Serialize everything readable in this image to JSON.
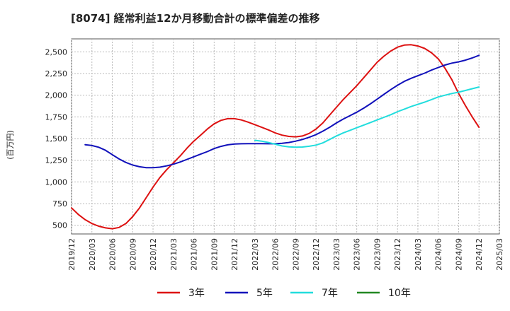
{
  "chart_data": {
    "type": "line",
    "title": "[8074]  経常利益12か月移動合計の標準偏差の推移",
    "ylabel": "(百万円)",
    "xlabel": "",
    "ylim": [
      400,
      2650
    ],
    "yticks": [
      500,
      750,
      1000,
      1250,
      1500,
      1750,
      2000,
      2250,
      2500
    ],
    "ytick_labels": [
      "500",
      "750",
      "1,000",
      "1,250",
      "1,500",
      "1,750",
      "2,000",
      "2,250",
      "2,500"
    ],
    "xlim": [
      "2019-12",
      "2025-03"
    ],
    "xtick_labels": [
      "2019/12",
      "2020/03",
      "2020/06",
      "2020/09",
      "2020/12",
      "2021/03",
      "2021/06",
      "2021/09",
      "2021/12",
      "2022/03",
      "2022/06",
      "2022/09",
      "2022/12",
      "2023/03",
      "2023/06",
      "2023/09",
      "2023/12",
      "2024/03",
      "2024/06",
      "2024/09",
      "2024/12",
      "2025/03"
    ],
    "grid": true,
    "legend_position": "bottom",
    "series": [
      {
        "name": "3年",
        "color": "#dd1111",
        "points": [
          [
            "2019-12",
            700
          ],
          [
            "2020-01",
            625
          ],
          [
            "2020-02",
            565
          ],
          [
            "2020-03",
            520
          ],
          [
            "2020-04",
            490
          ],
          [
            "2020-05",
            470
          ],
          [
            "2020-06",
            460
          ],
          [
            "2020-07",
            475
          ],
          [
            "2020-08",
            520
          ],
          [
            "2020-09",
            600
          ],
          [
            "2020-10",
            700
          ],
          [
            "2020-11",
            820
          ],
          [
            "2020-12",
            940
          ],
          [
            "2021-01",
            1050
          ],
          [
            "2021-02",
            1140
          ],
          [
            "2021-03",
            1220
          ],
          [
            "2021-04",
            1300
          ],
          [
            "2021-05",
            1390
          ],
          [
            "2021-06",
            1470
          ],
          [
            "2021-07",
            1540
          ],
          [
            "2021-08",
            1610
          ],
          [
            "2021-09",
            1670
          ],
          [
            "2021-10",
            1710
          ],
          [
            "2021-11",
            1730
          ],
          [
            "2021-12",
            1730
          ],
          [
            "2022-01",
            1715
          ],
          [
            "2022-02",
            1690
          ],
          [
            "2022-03",
            1660
          ],
          [
            "2022-04",
            1630
          ],
          [
            "2022-05",
            1600
          ],
          [
            "2022-06",
            1565
          ],
          [
            "2022-07",
            1540
          ],
          [
            "2022-08",
            1525
          ],
          [
            "2022-09",
            1520
          ],
          [
            "2022-10",
            1530
          ],
          [
            "2022-11",
            1560
          ],
          [
            "2022-12",
            1610
          ],
          [
            "2023-01",
            1680
          ],
          [
            "2023-02",
            1770
          ],
          [
            "2023-03",
            1860
          ],
          [
            "2023-04",
            1950
          ],
          [
            "2023-05",
            2030
          ],
          [
            "2023-06",
            2110
          ],
          [
            "2023-07",
            2200
          ],
          [
            "2023-08",
            2290
          ],
          [
            "2023-09",
            2380
          ],
          [
            "2023-10",
            2450
          ],
          [
            "2023-11",
            2510
          ],
          [
            "2023-12",
            2555
          ],
          [
            "2024-01",
            2578
          ],
          [
            "2024-02",
            2582
          ],
          [
            "2024-03",
            2568
          ],
          [
            "2024-04",
            2540
          ],
          [
            "2024-05",
            2490
          ],
          [
            "2024-06",
            2420
          ],
          [
            "2024-07",
            2310
          ],
          [
            "2024-08",
            2180
          ],
          [
            "2024-09",
            2020
          ],
          [
            "2024-10",
            1880
          ],
          [
            "2024-11",
            1750
          ],
          [
            "2024-12",
            1630
          ]
        ]
      },
      {
        "name": "5年",
        "color": "#1111bb",
        "points": [
          [
            "2019-12",
            null
          ],
          [
            "2020-01",
            null
          ],
          [
            "2020-02",
            1430
          ],
          [
            "2020-03",
            1420
          ],
          [
            "2020-04",
            1400
          ],
          [
            "2020-05",
            1365
          ],
          [
            "2020-06",
            1315
          ],
          [
            "2020-07",
            1265
          ],
          [
            "2020-08",
            1225
          ],
          [
            "2020-09",
            1195
          ],
          [
            "2020-10",
            1175
          ],
          [
            "2020-11",
            1165
          ],
          [
            "2020-12",
            1165
          ],
          [
            "2021-01",
            1170
          ],
          [
            "2021-02",
            1185
          ],
          [
            "2021-03",
            1205
          ],
          [
            "2021-04",
            1230
          ],
          [
            "2021-05",
            1260
          ],
          [
            "2021-06",
            1290
          ],
          [
            "2021-07",
            1320
          ],
          [
            "2021-08",
            1350
          ],
          [
            "2021-09",
            1385
          ],
          [
            "2021-10",
            1410
          ],
          [
            "2021-11",
            1428
          ],
          [
            "2021-12",
            1437
          ],
          [
            "2022-01",
            1440
          ],
          [
            "2022-02",
            1442
          ],
          [
            "2022-03",
            1442
          ],
          [
            "2022-04",
            1442
          ],
          [
            "2022-05",
            1440
          ],
          [
            "2022-06",
            1440
          ],
          [
            "2022-07",
            1445
          ],
          [
            "2022-08",
            1455
          ],
          [
            "2022-09",
            1470
          ],
          [
            "2022-10",
            1490
          ],
          [
            "2022-11",
            1515
          ],
          [
            "2022-12",
            1545
          ],
          [
            "2023-01",
            1585
          ],
          [
            "2023-02",
            1630
          ],
          [
            "2023-03",
            1680
          ],
          [
            "2023-04",
            1725
          ],
          [
            "2023-05",
            1765
          ],
          [
            "2023-06",
            1805
          ],
          [
            "2023-07",
            1850
          ],
          [
            "2023-08",
            1900
          ],
          [
            "2023-09",
            1955
          ],
          [
            "2023-10",
            2010
          ],
          [
            "2023-11",
            2065
          ],
          [
            "2023-12",
            2115
          ],
          [
            "2024-01",
            2160
          ],
          [
            "2024-02",
            2195
          ],
          [
            "2024-03",
            2225
          ],
          [
            "2024-04",
            2255
          ],
          [
            "2024-05",
            2290
          ],
          [
            "2024-06",
            2320
          ],
          [
            "2024-07",
            2348
          ],
          [
            "2024-08",
            2370
          ],
          [
            "2024-09",
            2385
          ],
          [
            "2024-10",
            2405
          ],
          [
            "2024-11",
            2430
          ],
          [
            "2024-12",
            2460
          ]
        ]
      },
      {
        "name": "7年",
        "color": "#22dddd",
        "points": [
          [
            "2022-03",
            1480
          ],
          [
            "2022-04",
            1470
          ],
          [
            "2022-05",
            1455
          ],
          [
            "2022-06",
            1435
          ],
          [
            "2022-07",
            1415
          ],
          [
            "2022-08",
            1405
          ],
          [
            "2022-09",
            1400
          ],
          [
            "2022-10",
            1403
          ],
          [
            "2022-11",
            1412
          ],
          [
            "2022-12",
            1425
          ],
          [
            "2023-01",
            1450
          ],
          [
            "2023-02",
            1490
          ],
          [
            "2023-03",
            1530
          ],
          [
            "2023-04",
            1565
          ],
          [
            "2023-05",
            1595
          ],
          [
            "2023-06",
            1625
          ],
          [
            "2023-07",
            1655
          ],
          [
            "2023-08",
            1685
          ],
          [
            "2023-09",
            1715
          ],
          [
            "2023-10",
            1745
          ],
          [
            "2023-11",
            1775
          ],
          [
            "2023-12",
            1810
          ],
          [
            "2024-01",
            1840
          ],
          [
            "2024-02",
            1870
          ],
          [
            "2024-03",
            1895
          ],
          [
            "2024-04",
            1920
          ],
          [
            "2024-05",
            1950
          ],
          [
            "2024-06",
            1980
          ],
          [
            "2024-07",
            2000
          ],
          [
            "2024-08",
            2020
          ],
          [
            "2024-09",
            2035
          ],
          [
            "2024-10",
            2055
          ],
          [
            "2024-11",
            2075
          ],
          [
            "2024-12",
            2095
          ]
        ]
      },
      {
        "name": "10年",
        "color": "#228822",
        "points": []
      }
    ]
  }
}
